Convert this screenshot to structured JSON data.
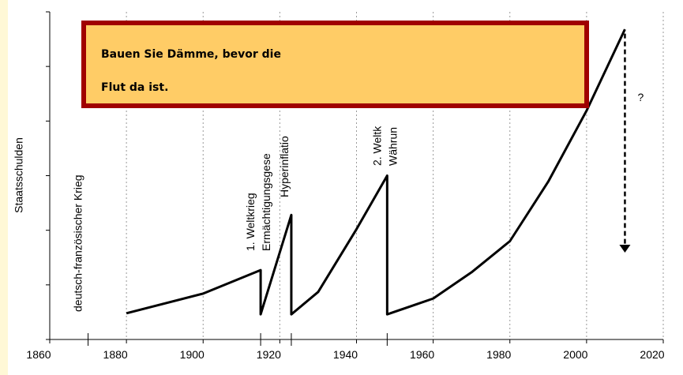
{
  "chart_data": {
    "type": "line",
    "y_label": "Staatsschulden",
    "callout": [
      "Bauen Sie Dämme, bevor die",
      "Flut da ist."
    ],
    "x": [
      1880,
      1900,
      1915,
      1915,
      1923,
      1923,
      1930,
      1940,
      1948,
      1948,
      1960,
      1970,
      1980,
      1990,
      2000,
      2010
    ],
    "series": [
      {
        "name": "Staatsschulden",
        "color": "#000000",
        "values": [
          0.48,
          0.84,
          1.27,
          0.46,
          2.28,
          0.46,
          0.87,
          2.02,
          3.0,
          0.46,
          0.75,
          1.23,
          1.8,
          2.89,
          4.19,
          5.68
        ]
      }
    ],
    "xlim": [
      1860,
      2020
    ],
    "xticks": [
      1860,
      1880,
      1900,
      1920,
      1940,
      1960,
      1980,
      2000,
      2020
    ],
    "ylim": [
      0,
      6
    ],
    "yticks": [
      0,
      1,
      2,
      3,
      4,
      5,
      6
    ],
    "grid": true,
    "annotations": [
      {
        "x": 1870,
        "lines": [
          "deutsch-französischer Krieg"
        ]
      },
      {
        "x": 1915,
        "lines": [
          "1. Weltkrieg",
          "Ermächtigungsgese"
        ]
      },
      {
        "x": 1923,
        "lines": [
          "Hyperinflatio"
        ]
      },
      {
        "x": 1948,
        "lines": [
          "2. Weltk",
          "Währun"
        ]
      }
    ],
    "arrow": {
      "x": 2010,
      "from": 5.6,
      "to": 1.62,
      "label": "?"
    }
  }
}
